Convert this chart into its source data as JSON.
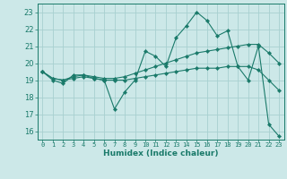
{
  "title": "",
  "xlabel": "Humidex (Indice chaleur)",
  "bg_color": "#cce8e8",
  "line_color": "#1a7a6a",
  "grid_color": "#a8d0d0",
  "xlim": [
    -0.5,
    23.5
  ],
  "ylim": [
    15.5,
    23.5
  ],
  "yticks": [
    16,
    17,
    18,
    19,
    20,
    21,
    22,
    23
  ],
  "xticks": [
    0,
    1,
    2,
    3,
    4,
    5,
    6,
    7,
    8,
    9,
    10,
    11,
    12,
    13,
    14,
    15,
    16,
    17,
    18,
    19,
    20,
    21,
    22,
    23
  ],
  "line1_y": [
    19.5,
    19.0,
    18.8,
    19.3,
    19.3,
    19.1,
    19.0,
    17.3,
    18.3,
    19.0,
    20.7,
    20.4,
    19.8,
    21.5,
    22.2,
    23.0,
    22.5,
    21.6,
    21.9,
    19.8,
    19.0,
    21.0,
    16.4,
    15.7
  ],
  "line2_y": [
    19.5,
    19.1,
    19.0,
    19.2,
    19.3,
    19.2,
    19.1,
    19.1,
    19.2,
    19.4,
    19.6,
    19.8,
    20.0,
    20.2,
    20.4,
    20.6,
    20.7,
    20.8,
    20.9,
    21.0,
    21.1,
    21.1,
    20.6,
    20.0
  ],
  "line3_y": [
    19.5,
    19.1,
    19.0,
    19.1,
    19.2,
    19.1,
    19.0,
    19.0,
    19.0,
    19.1,
    19.2,
    19.3,
    19.4,
    19.5,
    19.6,
    19.7,
    19.7,
    19.7,
    19.8,
    19.8,
    19.8,
    19.6,
    19.0,
    18.4
  ]
}
